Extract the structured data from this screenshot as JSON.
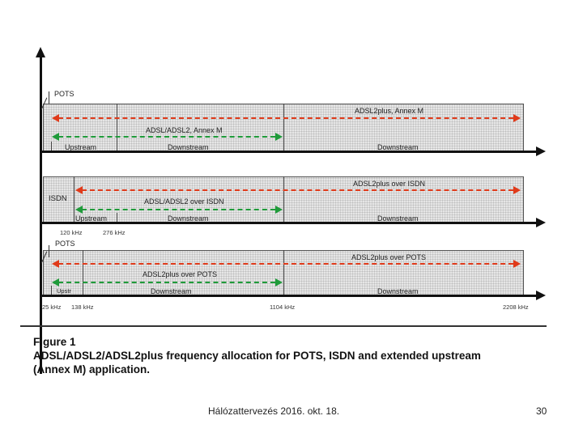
{
  "figure": {
    "panel1": {
      "corner_label": "POTS",
      "top_arrow_label": "ADSL2plus, Annex M",
      "mid_arrow_label": "ADSL/ADSL2, Annex M",
      "seg_labels": [
        "Upstream",
        "Downstream",
        "Downstream"
      ]
    },
    "panel2": {
      "left_label": "ISDN",
      "top_arrow_label": "ADSL2plus over ISDN",
      "mid_arrow_label": "ADSL/ADSL2 over ISDN",
      "seg_labels": [
        "Upstream",
        "Downstream",
        "Downstream"
      ],
      "freq_labels": [
        "120 kHz",
        "276 kHz"
      ]
    },
    "panel3": {
      "corner_label": "POTS",
      "top_arrow_label": "ADSL2plus over POTS",
      "mid_arrow_label": "ADSL2plus over POTS",
      "seg_labels": [
        "Upstr",
        "Downstream",
        "Downstream"
      ],
      "freq_labels": [
        "25 kHz",
        "138 kHz",
        "1104 kHz",
        "2208 kHz"
      ]
    },
    "caption": {
      "title": "Figure 1",
      "line1": "ADSL/ADSL2/ADSL2plus frequency allocation for POTS, ISDN and extended upstream",
      "line2": "(Annex M) application."
    }
  },
  "footer": {
    "text": "Hálózattervezés 2016. okt. 18.",
    "page_number": "30"
  },
  "colors": {
    "red_arrow": "#e03a1a",
    "green_arrow": "#1f9b3a"
  }
}
